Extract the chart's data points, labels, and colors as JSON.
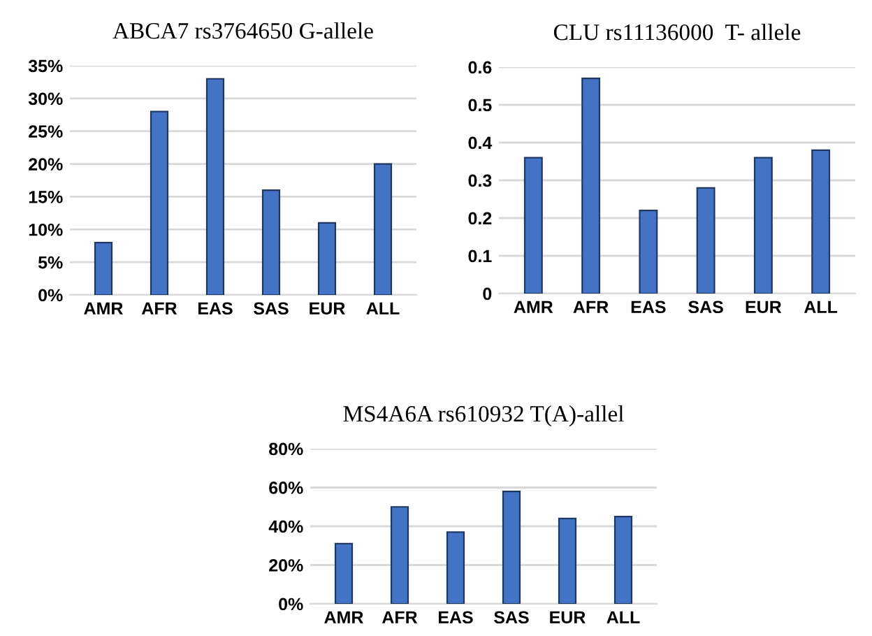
{
  "chart_data": [
    {
      "type": "bar",
      "title": "ABCA7 rs3764650 G-allele",
      "categories": [
        "AMR",
        "AFR",
        "EAS",
        "SAS",
        "EUR",
        "ALL"
      ],
      "values": [
        8,
        28,
        33,
        16,
        11,
        20
      ],
      "color": "#4472c4",
      "ylim": [
        0,
        35
      ],
      "yticks": [
        {
          "value": 0,
          "label": "0%"
        },
        {
          "value": 5,
          "label": "5%"
        },
        {
          "value": 10,
          "label": "10%"
        },
        {
          "value": 15,
          "label": "15%"
        },
        {
          "value": 20,
          "label": "20%"
        },
        {
          "value": 25,
          "label": "25%"
        },
        {
          "value": 30,
          "label": "30%"
        },
        {
          "value": 35,
          "label": "35%"
        }
      ],
      "grid": "y"
    },
    {
      "type": "bar",
      "title": "CLU rs11136000  T- allele",
      "categories": [
        "AMR",
        "AFR",
        "EAS",
        "SAS",
        "EUR",
        "ALL"
      ],
      "values": [
        0.36,
        0.57,
        0.22,
        0.28,
        0.36,
        0.38
      ],
      "color": "#4472c4",
      "ylim": [
        0,
        0.6
      ],
      "yticks": [
        0,
        0.1,
        0.2,
        0.3,
        0.4,
        0.5,
        0.6
      ],
      "grid": "y"
    },
    {
      "type": "bar",
      "title": "MS4A6A rs610932 T(A)-allel",
      "categories": [
        "AMR",
        "AFR",
        "EAS",
        "SAS",
        "EUR",
        "ALL"
      ],
      "values": [
        31,
        50,
        37,
        58,
        44,
        45
      ],
      "color": "#4472c4",
      "ylim": [
        0,
        80
      ],
      "yticks": [
        {
          "value": 0,
          "label": "0%"
        },
        {
          "value": 20,
          "label": "20%"
        },
        {
          "value": 40,
          "label": "40%"
        },
        {
          "value": 60,
          "label": "60%"
        },
        {
          "value": 80,
          "label": "80%"
        }
      ],
      "grid": "y"
    }
  ]
}
